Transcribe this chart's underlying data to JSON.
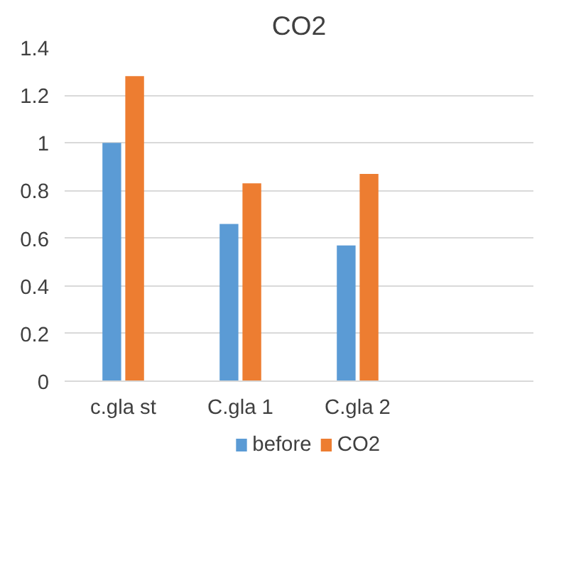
{
  "chart_data": {
    "type": "bar",
    "title": "CO2",
    "categories": [
      "c.gla st",
      "C.gla 1",
      "C.gla 2",
      null
    ],
    "series": [
      {
        "name": "before",
        "color": "#5b9bd5",
        "values": [
          1.0,
          0.66,
          0.57,
          null
        ]
      },
      {
        "name": "CO2",
        "color": "#ed7d31",
        "values": [
          1.28,
          0.83,
          0.87,
          null
        ]
      }
    ],
    "ylim": [
      0,
      1.4
    ],
    "yticks": [
      0,
      0.2,
      0.4,
      0.6,
      0.8,
      1,
      1.2,
      1.4
    ],
    "grid": "y",
    "legend": "bottom"
  }
}
